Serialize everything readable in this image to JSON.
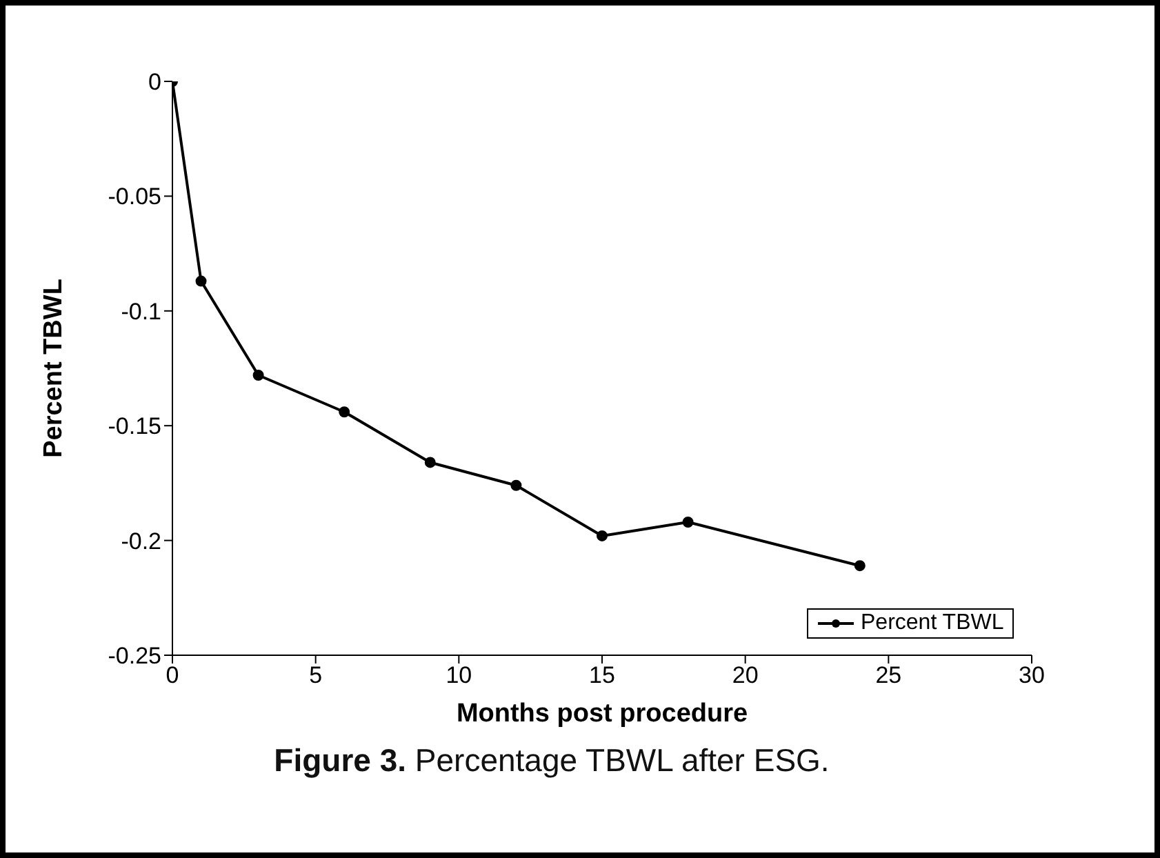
{
  "chart_data": {
    "type": "line",
    "xlabel": "Months post procedure",
    "ylabel": "Percent TBWL",
    "x": [
      0,
      1,
      3,
      6,
      9,
      12,
      15,
      18,
      24
    ],
    "series": [
      {
        "name": "Percent TBWL",
        "color": "#000000",
        "values": [
          0,
          -0.087,
          -0.128,
          -0.144,
          -0.166,
          -0.176,
          -0.198,
          -0.192,
          -0.211
        ]
      }
    ],
    "xlim": [
      0,
      30
    ],
    "xticks": [
      0,
      5,
      10,
      15,
      20,
      25,
      30
    ],
    "ylim": [
      -0.25,
      0
    ],
    "yticks": [
      0,
      -0.05,
      -0.1,
      -0.15,
      -0.2,
      -0.25
    ],
    "grid": false,
    "legend": "bottom right",
    "marker": "circle",
    "line_style": "solid",
    "annotations": [
      "Figure 3. Percentage TBWL after ESG."
    ]
  }
}
